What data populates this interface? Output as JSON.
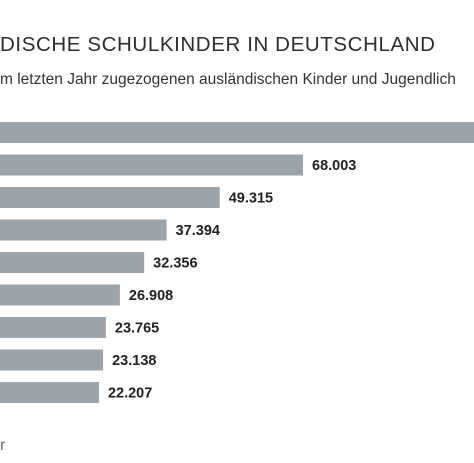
{
  "header": {
    "title": "DISCHE SCHULKINDER IN DEUTSCHLAND",
    "subtitle": "m letzten Jahr zugezogenen ausländischen Kinder und Jugendlich"
  },
  "footer": {
    "mark": "r"
  },
  "chart_data": {
    "type": "bar",
    "orientation": "horizontal",
    "title": "DISCHE SCHULKINDER IN DEUTSCHLAND",
    "subtitle": "m letzten Jahr zugezogenen ausländischen Kinder und Jugendlich",
    "bar_color": "#9ba3ab",
    "values": [
      120000,
      68003,
      49315,
      37394,
      32356,
      26908,
      23765,
      23138,
      22207
    ],
    "value_labels": [
      "",
      "68.003",
      "49.315",
      "37.394",
      "32.356",
      "26.908",
      "23.765",
      "23.138",
      "22.207"
    ],
    "grid": false
  }
}
